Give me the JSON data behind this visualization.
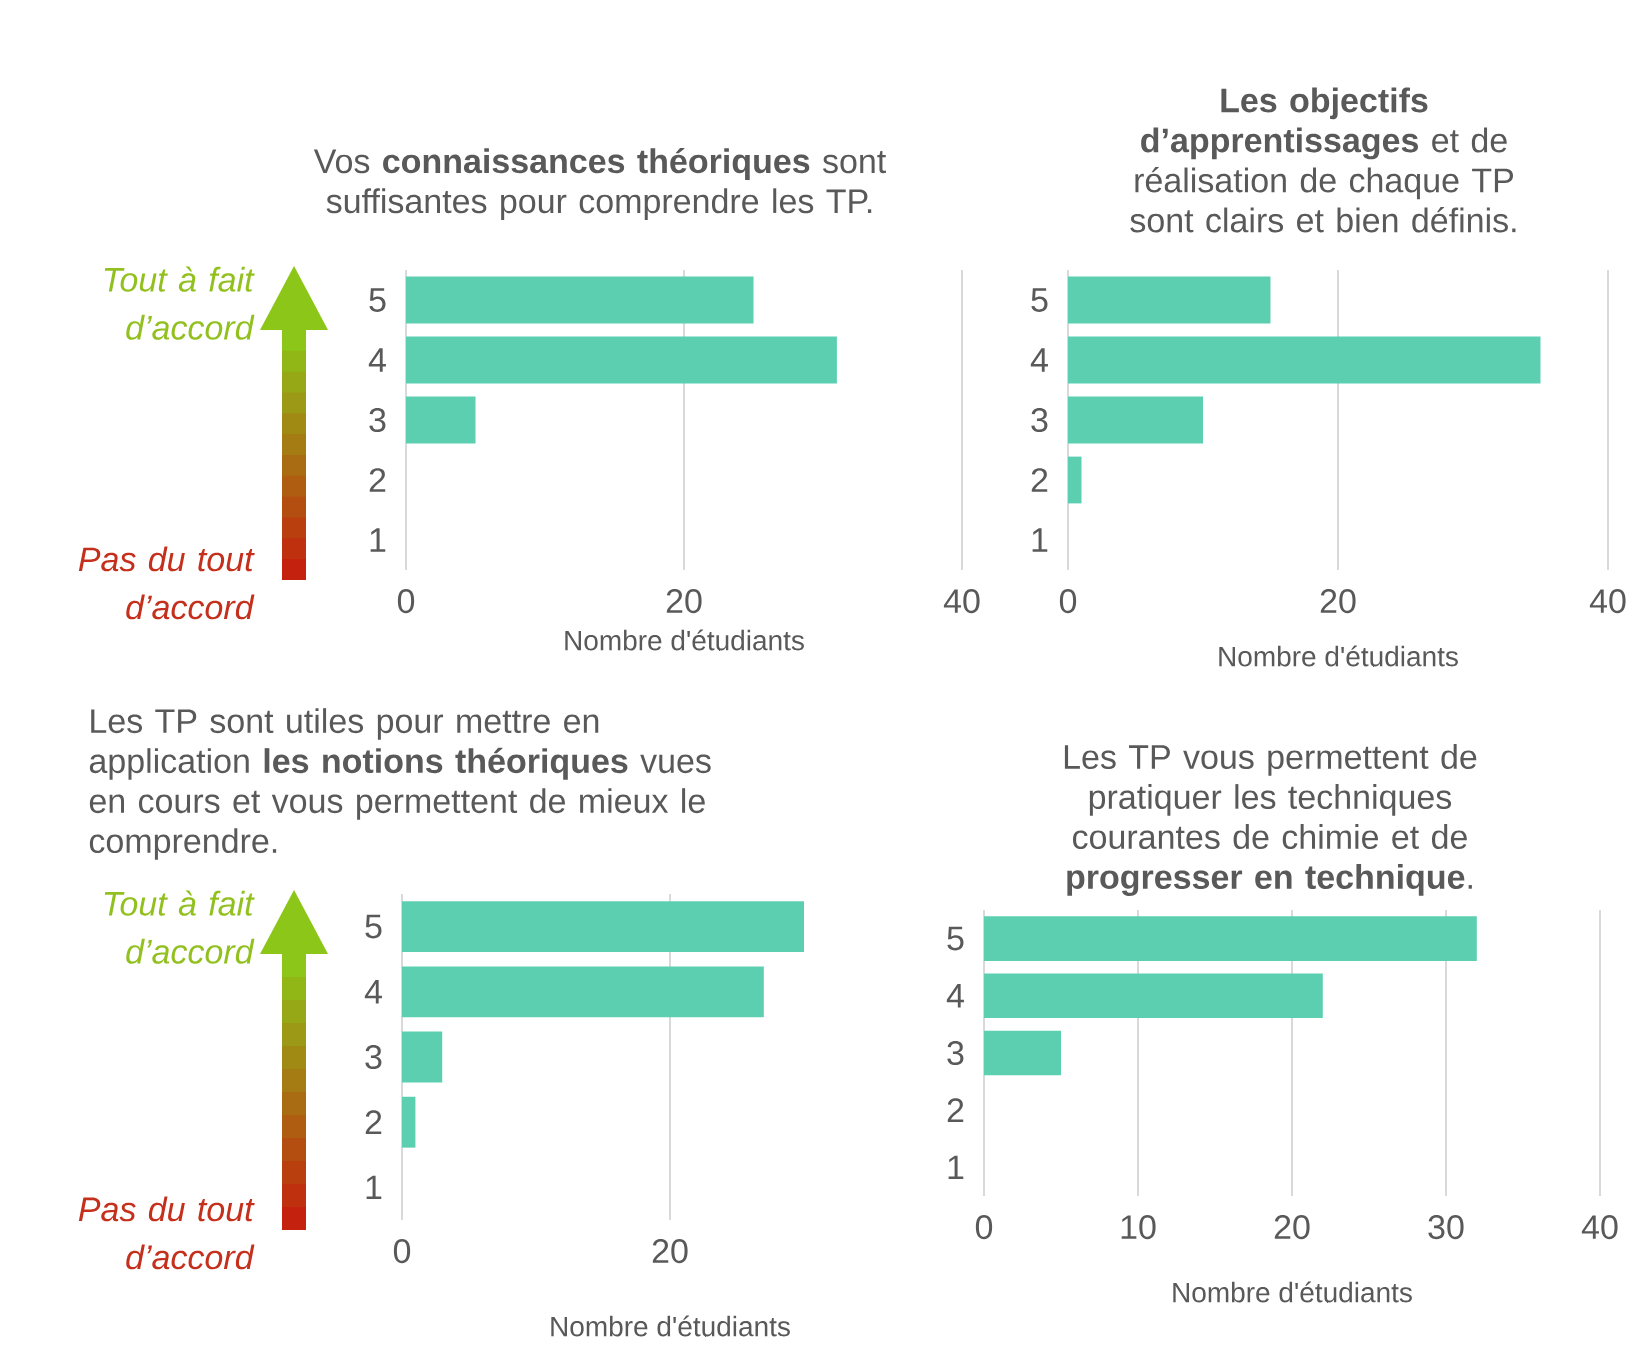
{
  "chart_data": [
    {
      "type": "bar",
      "orientation": "horizontal",
      "title": "Vos **connaissances théoriques** sont suffisantes pour comprendre les TP.",
      "xlabel": "Nombre d'étudiants",
      "categories": [
        "5",
        "4",
        "3",
        "2",
        "1"
      ],
      "values": [
        25,
        31,
        5,
        0,
        0
      ],
      "color": "#5ccfb1",
      "xlim": [
        0,
        40
      ],
      "xticks": [
        0,
        20,
        40
      ],
      "grid": "x",
      "annotations": [
        "Tout à fait d’accord",
        "Pas du tout d’accord"
      ]
    },
    {
      "type": "bar",
      "orientation": "horizontal",
      "title": "**Les objectifs d’apprentissages** et de réalisation de chaque TP sont clairs et bien définis.",
      "xlabel": "Nombre d'étudiants",
      "categories": [
        "5",
        "4",
        "3",
        "2",
        "1"
      ],
      "values": [
        15,
        35,
        10,
        1,
        0
      ],
      "color": "#5ccfb1",
      "xlim": [
        0,
        40
      ],
      "xticks": [
        0,
        20,
        40
      ],
      "grid": "x"
    },
    {
      "type": "bar",
      "orientation": "horizontal",
      "title": "Les TP sont utiles pour mettre en application **les notions théoriques** vues en cours et vous permettent de mieux le comprendre.",
      "xlabel": "Nombre d'étudiants",
      "categories": [
        "5",
        "4",
        "3",
        "2",
        "1"
      ],
      "values": [
        30,
        27,
        3,
        1,
        0
      ],
      "color": "#5ccfb1",
      "xlim": [
        0,
        30
      ],
      "xticks": [
        0,
        20
      ],
      "grid": "x",
      "annotations": [
        "Tout à fait d’accord",
        "Pas du tout d’accord"
      ]
    },
    {
      "type": "bar",
      "orientation": "horizontal",
      "title": "Les TP vous permettent de pratiquer les techniques courantes de chimie et de **progresser en technique**.",
      "xlabel": "Nombre d'étudiants",
      "categories": [
        "5",
        "4",
        "3",
        "2",
        "1"
      ],
      "values": [
        32,
        22,
        5,
        0,
        0
      ],
      "color": "#5ccfb1",
      "xlim": [
        0,
        40
      ],
      "xticks": [
        0,
        10,
        20,
        30,
        40
      ],
      "grid": "x"
    }
  ]
}
